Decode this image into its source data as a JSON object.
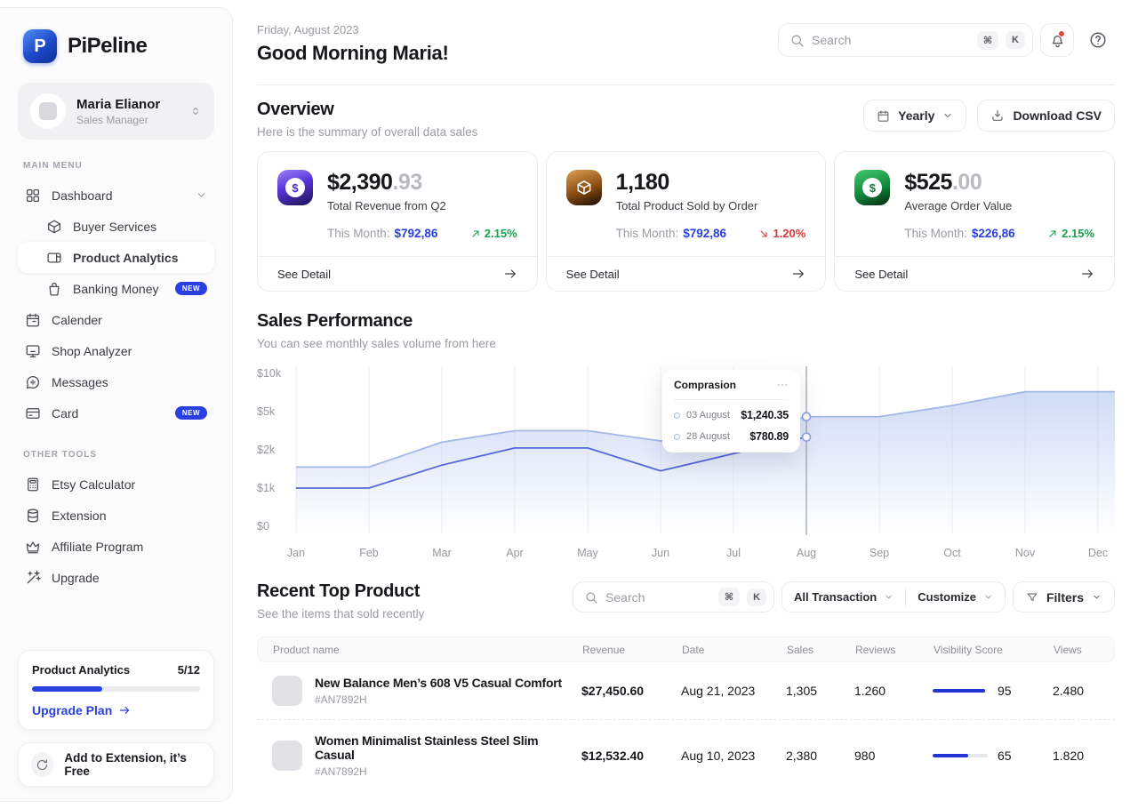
{
  "app": {
    "name": "PiPeline"
  },
  "user": {
    "name": "Maria Elianor",
    "role": "Sales Manager"
  },
  "sidebar": {
    "main_menu_label": "MAIN MENU",
    "other_tools_label": "OTHER TOOLS",
    "menu": [
      {
        "label": "Dashboard"
      },
      {
        "label": "Buyer Services"
      },
      {
        "label": "Product Analytics"
      },
      {
        "label": "Banking Money",
        "badge": "NEW"
      },
      {
        "label": "Calender"
      },
      {
        "label": "Shop Analyzer"
      },
      {
        "label": "Messages"
      },
      {
        "label": "Card",
        "badge": "NEW"
      }
    ],
    "tools": [
      {
        "label": "Etsy Calculator"
      },
      {
        "label": "Extension"
      },
      {
        "label": "Affiliate Program"
      },
      {
        "label": "Upgrade"
      }
    ],
    "usage": {
      "label": "Product Analytics",
      "count": "5/12",
      "percent": 42,
      "upgrade_label": "Upgrade Plan"
    },
    "extension_button": "Add to Extension, it’s Free"
  },
  "header": {
    "date": "Friday, August 2023",
    "greeting": "Good Morning Maria!",
    "search_placeholder": "Search",
    "kbd_cmd": "⌘",
    "kbd_k": "K"
  },
  "overview": {
    "title": "Overview",
    "subtitle": "Here is the summary of overall data sales",
    "period_label": "Yearly",
    "download_label": "Download CSV",
    "cards": [
      {
        "value": "$2,390",
        "frac": ".93",
        "label": "Total Revenue from Q2",
        "this_month_label": "This Month:",
        "this_month_value": "$792,86",
        "delta": "2.15%",
        "trend": "up",
        "see_detail": "See Detail"
      },
      {
        "value": "1,180",
        "frac": "",
        "label": "Total Product Sold by Order",
        "this_month_label": "This Month:",
        "this_month_value": "$792,86",
        "delta": "1.20%",
        "trend": "down",
        "see_detail": "See Detail"
      },
      {
        "value": "$525",
        "frac": ".00",
        "label": "Average Order Value",
        "this_month_label": "This Month:",
        "this_month_value": "$226,86",
        "delta": "2.15%",
        "trend": "up",
        "see_detail": "See Detail"
      }
    ]
  },
  "sales": {
    "title": "Sales Performance",
    "subtitle": "You can see monthly sales volume from here"
  },
  "chart_data": {
    "type": "area",
    "title": "Sales Performance",
    "xlabel": "",
    "ylabel": "",
    "x": [
      "Jan",
      "Feb",
      "Mar",
      "Apr",
      "May",
      "Jun",
      "Jul",
      "Aug",
      "Sep",
      "Oct",
      "Nov",
      "Dec"
    ],
    "y_ticks": [
      "$10k",
      "$5k",
      "$2k",
      "$1k",
      "$0"
    ],
    "y_tick_values": [
      10000,
      5000,
      2000,
      1000,
      0
    ],
    "grid": "vertical",
    "legend": "none",
    "series": [
      {
        "name": "upper",
        "color": "#a3b7e9",
        "values": [
          1550,
          1550,
          2600,
          3500,
          3500,
          2700,
          3200,
          4600,
          4600,
          5800,
          7600,
          7600
        ]
      },
      {
        "name": "lower",
        "color": "#5568d8",
        "values": [
          1000,
          1000,
          1600,
          2150,
          2150,
          1450,
          1900,
          3000,
          null,
          null,
          null,
          null
        ]
      }
    ],
    "tooltip": {
      "title": "Comprasion",
      "highlight_month": "Aug",
      "rows": [
        {
          "label": "03 August",
          "value": "$1,240.35"
        },
        {
          "label": "28 August",
          "value": "$780.89"
        }
      ]
    }
  },
  "products": {
    "title": "Recent Top Product",
    "subtitle": "See the items that sold recently",
    "search_placeholder": "Search",
    "kbd_cmd": "⌘",
    "kbd_k": "K",
    "transaction_filter": "All Transaction",
    "customize_filter": "Customize",
    "filters_label": "Filters",
    "columns": [
      "Product name",
      "Revenue",
      "Date",
      "Sales",
      "Reviews",
      "Visibility Score",
      "Views"
    ],
    "rows": [
      {
        "name": "New Balance Men’s 608 V5 Casual Comfort",
        "sku": "#AN7892H",
        "revenue": "$27,450.60",
        "date": "Aug 21, 2023",
        "sales": "1,305",
        "reviews": "1.260",
        "visibility": 95,
        "views": "2.480"
      },
      {
        "name": "Women Minimalist Stainless Steel Slim Casual",
        "sku": "#AN7892H",
        "revenue": "$12,532.40",
        "date": "Aug 10, 2023",
        "sales": "2,380",
        "reviews": "980",
        "visibility": 65,
        "views": "1.820"
      }
    ]
  },
  "colors": {
    "accent_blue": "#2a3fe0",
    "positive_green": "#18a24c",
    "negative_red": "#d4373e",
    "chart_line_light": "#a3b7e9",
    "chart_line_dark": "#5568d8",
    "badge_blue": "#2a3fe0"
  }
}
